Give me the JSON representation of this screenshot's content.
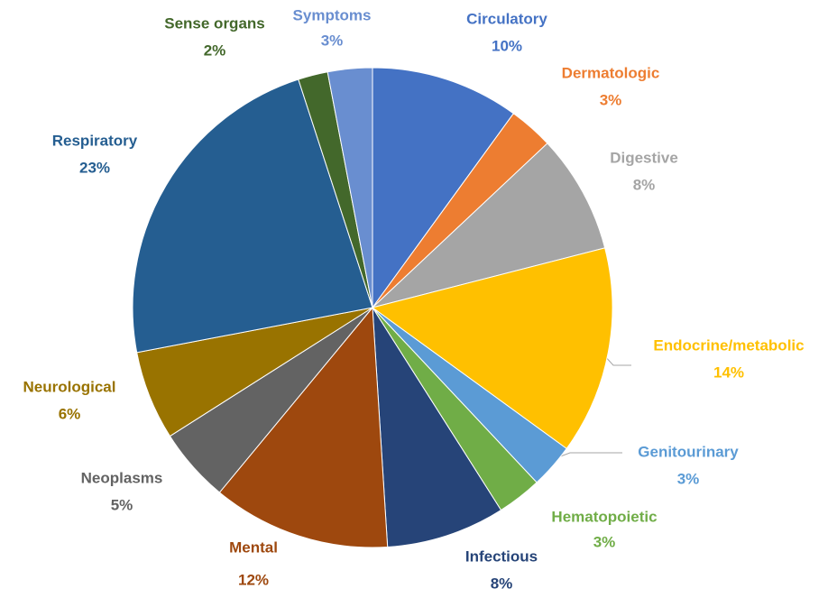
{
  "chart_data": {
    "type": "pie",
    "categories": [
      "Circulatory",
      "Dermatologic",
      "Digestive",
      "Endocrine/metabolic",
      "Genitourinary",
      "Hematopoietic",
      "Infectious",
      "Mental",
      "Neoplasms",
      "Neurological",
      "Respiratory",
      "Sense organs",
      "Symptoms"
    ],
    "values": [
      10,
      3,
      8,
      14,
      3,
      3,
      8,
      12,
      5,
      6,
      23,
      2,
      3
    ],
    "value_labels": [
      "10%",
      "3%",
      "8%",
      "14%",
      "3%",
      "3%",
      "8%",
      "12%",
      "5%",
      "6%",
      "23%",
      "2%",
      "3%"
    ],
    "colors": [
      "#4472c4",
      "#ed7d31",
      "#a5a5a5",
      "#ffc000",
      "#5b9bd5",
      "#70ad47",
      "#264478",
      "#9e480e",
      "#636363",
      "#997300",
      "#255e91",
      "#43682b",
      "#698ed0"
    ]
  }
}
